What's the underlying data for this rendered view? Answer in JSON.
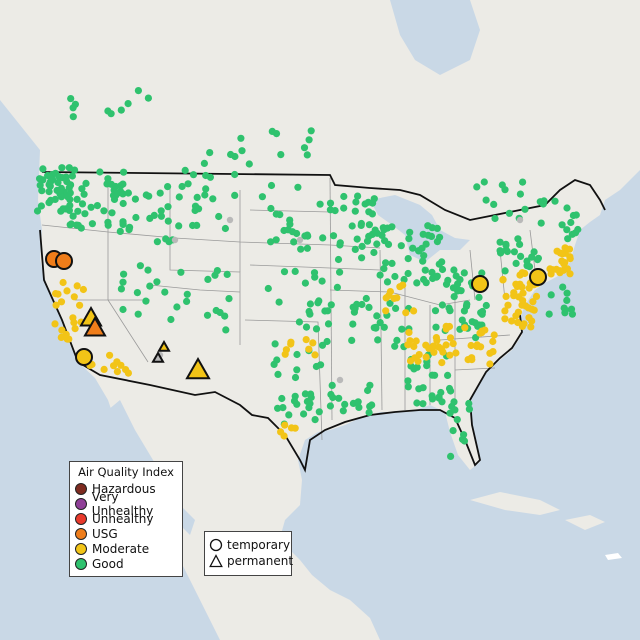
{
  "legend": {
    "title": "Air Quality Index",
    "categories": [
      {
        "label": "Hazardous",
        "color": "#7e2b20"
      },
      {
        "label": "Very Unhealthy",
        "color": "#8f3f97"
      },
      {
        "label": "Unhealthy",
        "color": "#e8392b"
      },
      {
        "label": "USG",
        "color": "#ef7d1a"
      },
      {
        "label": "Moderate",
        "color": "#f2c417"
      },
      {
        "label": "Good",
        "color": "#2fc26e"
      }
    ],
    "types": [
      {
        "label": "temporary",
        "shape": "circle"
      },
      {
        "label": "permanent",
        "shape": "triangle"
      }
    ]
  },
  "colors": {
    "water": "#c9d8e6",
    "land": "#ecebe6",
    "good": "#2fc26e",
    "moderate": "#f2c417",
    "usg": "#ef7d1a",
    "no_data": "#b9b9b9"
  }
}
